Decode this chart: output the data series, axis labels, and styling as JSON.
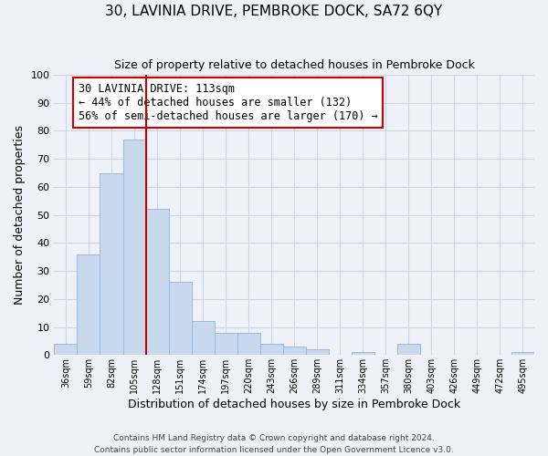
{
  "title": "30, LAVINIA DRIVE, PEMBROKE DOCK, SA72 6QY",
  "subtitle": "Size of property relative to detached houses in Pembroke Dock",
  "xlabel": "Distribution of detached houses by size in Pembroke Dock",
  "ylabel": "Number of detached properties",
  "footer_line1": "Contains HM Land Registry data © Crown copyright and database right 2024.",
  "footer_line2": "Contains public sector information licensed under the Open Government Licence v3.0.",
  "bin_labels": [
    "36sqm",
    "59sqm",
    "82sqm",
    "105sqm",
    "128sqm",
    "151sqm",
    "174sqm",
    "197sqm",
    "220sqm",
    "243sqm",
    "266sqm",
    "289sqm",
    "311sqm",
    "334sqm",
    "357sqm",
    "380sqm",
    "403sqm",
    "426sqm",
    "449sqm",
    "472sqm",
    "495sqm"
  ],
  "bar_values": [
    4,
    36,
    65,
    77,
    52,
    26,
    12,
    8,
    8,
    4,
    3,
    2,
    0,
    1,
    0,
    4,
    0,
    0,
    0,
    0,
    1
  ],
  "bar_color": "#c8d9ee",
  "bar_edge_color": "#9ab8d8",
  "vline_x": 4.0,
  "annotation_text": "30 LAVINIA DRIVE: 113sqm\n← 44% of detached houses are smaller (132)\n56% of semi-detached houses are larger (170) →",
  "annotation_box_color": "#ffffff",
  "annotation_box_edge_color": "#cc0000",
  "vline_color": "#cc0000",
  "ylim": [
    0,
    100
  ],
  "grid_color": "#ccd5e3",
  "background_color": "#eef2f8"
}
